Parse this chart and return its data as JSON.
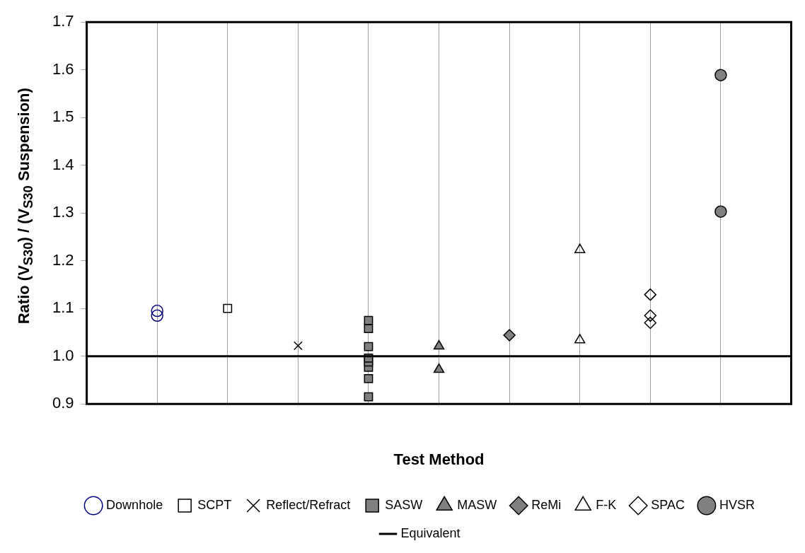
{
  "chart_data": {
    "type": "scatter",
    "xlabel": "Test Method",
    "ylabel": "Ratio (V$_{S30}$) / (V$_{S30}$ Suspension)",
    "categories": [
      null,
      null,
      null,
      null,
      null,
      null,
      null,
      null,
      null
    ],
    "ylim": [
      0.9,
      1.7
    ],
    "yticks": [
      0.9,
      {
        "value": 1.0,
        "label": "1.0"
      },
      1.1,
      1.2,
      1.3,
      1.4,
      1.5,
      1.6,
      1.7
    ],
    "grid": "x",
    "legend": "bottom",
    "series": [
      {
        "name": "Downhole",
        "color": "#000080",
        "marker": "circle",
        "values": [
          1.095,
          null,
          null,
          null,
          null,
          null,
          null,
          null,
          null
        ]
      },
      {
        "color": "#000080",
        "marker": "circle",
        "values": [
          1.085,
          null,
          null,
          null,
          null,
          null,
          null,
          null,
          null
        ]
      },
      {
        "name": "SCPT",
        "color": "#000000",
        "marker": "square",
        "values": [
          null,
          1.1,
          null,
          null,
          null,
          null,
          null,
          null,
          null
        ]
      },
      {
        "name": "Reflect/Refract",
        "color": "#000000",
        "marker": "cross",
        "values": [
          null,
          null,
          1.022,
          null,
          null,
          null,
          null,
          null,
          null
        ]
      },
      {
        "name": "SASW",
        "color": "#808080",
        "marker": "square",
        "values": [
          null,
          null,
          null,
          1.075,
          null,
          null,
          null,
          null,
          null
        ]
      },
      {
        "color": "#808080",
        "marker": "square",
        "values": [
          null,
          null,
          null,
          1.058,
          null,
          null,
          null,
          null,
          null
        ]
      },
      {
        "color": "#808080",
        "marker": "square",
        "values": [
          null,
          null,
          null,
          1.02,
          null,
          null,
          null,
          null,
          null
        ]
      },
      {
        "color": "#808080",
        "marker": "square",
        "values": [
          null,
          null,
          null,
          0.996,
          null,
          null,
          null,
          null,
          null
        ]
      },
      {
        "color": "#808080",
        "marker": "square",
        "values": [
          null,
          null,
          null,
          0.988,
          null,
          null,
          null,
          null,
          null
        ]
      },
      {
        "color": "#808080",
        "marker": "square",
        "values": [
          null,
          null,
          null,
          0.977,
          null,
          null,
          null,
          null,
          null
        ]
      },
      {
        "color": "#808080",
        "marker": "square",
        "values": [
          null,
          null,
          null,
          0.953,
          null,
          null,
          null,
          null,
          null
        ]
      },
      {
        "color": "#808080",
        "marker": "square",
        "values": [
          null,
          null,
          null,
          0.915,
          null,
          null,
          null,
          null,
          null
        ]
      },
      {
        "name": "MASW",
        "color": "#808080",
        "marker": "triangle",
        "values": [
          null,
          null,
          null,
          null,
          1.021,
          null,
          null,
          null,
          null
        ]
      },
      {
        "color": "#808080",
        "marker": "triangle",
        "values": [
          null,
          null,
          null,
          null,
          0.972,
          null,
          null,
          null,
          null
        ]
      },
      {
        "name": "ReMi",
        "color": "#808080",
        "marker": "diamond",
        "values": [
          null,
          null,
          null,
          null,
          null,
          1.044,
          null,
          null,
          null
        ]
      },
      {
        "name": "F-K",
        "color": "#000000",
        "marker": "triangle",
        "values": [
          null,
          null,
          null,
          null,
          null,
          null,
          1.223,
          null,
          null
        ]
      },
      {
        "color": "#000000",
        "marker": "triangle",
        "values": [
          null,
          null,
          null,
          null,
          null,
          null,
          1.034,
          null,
          null
        ]
      },
      {
        "name": "SPAC",
        "color": "#000000",
        "marker": "diamond",
        "values": [
          null,
          null,
          null,
          null,
          null,
          null,
          null,
          1.129,
          null
        ]
      },
      {
        "color": "#000000",
        "marker": "diamond",
        "values": [
          null,
          null,
          null,
          null,
          null,
          null,
          null,
          1.085,
          null
        ]
      },
      {
        "color": "#000000",
        "marker": "diamond",
        "values": [
          null,
          null,
          null,
          null,
          null,
          null,
          null,
          1.07,
          null
        ]
      },
      {
        "name": "HVSR",
        "color": "#808080",
        "marker": "circle",
        "values": [
          null,
          null,
          null,
          null,
          null,
          null,
          null,
          null,
          1.589
        ]
      },
      {
        "color": "#808080",
        "marker": "circle",
        "values": [
          null,
          null,
          null,
          null,
          null,
          null,
          null,
          null,
          1.303
        ]
      }
    ],
    "ref_lines": [
      {
        "axis": "y",
        "value": 1.0,
        "label": "Equivalent",
        "color": "#000000",
        "line_style": "solid"
      }
    ]
  }
}
